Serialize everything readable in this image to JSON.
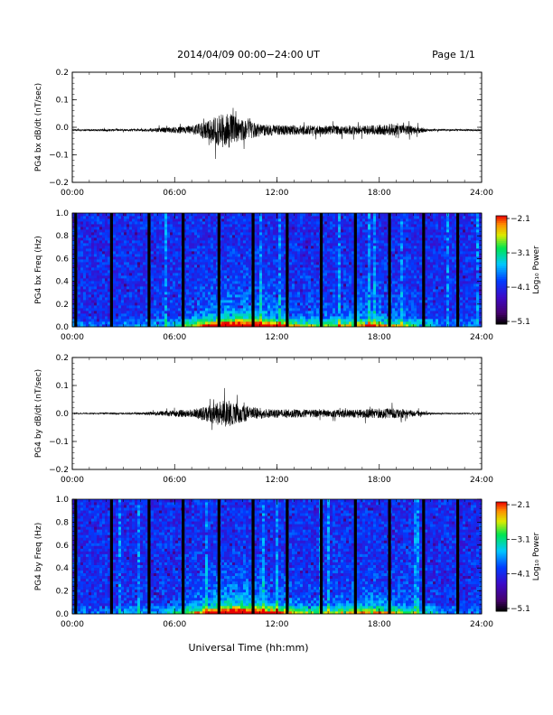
{
  "header": {
    "title": "2014/04/09  00:00−24:00 UT",
    "page": "Page 1/1"
  },
  "xlabel": "Universal Time (hh:mm)",
  "chart_data": [
    {
      "type": "line",
      "ylabel": "PG4 bx dB/dt (nT/sec)",
      "x_ticks": [
        "00:00",
        "06:00",
        "12:00",
        "18:00",
        "24:00"
      ],
      "xlim": [
        0,
        24
      ],
      "ylim": [
        -0.2,
        0.2
      ],
      "y_ticks": [
        "0.2",
        "0.1",
        "0.0",
        "−0.1",
        "−0.2"
      ],
      "baseline": -0.01,
      "envelope_hours": [
        0,
        1,
        2,
        3,
        4,
        5,
        6,
        7,
        8,
        9,
        10,
        11,
        12,
        13,
        14,
        15,
        16,
        17,
        18,
        19,
        20,
        21,
        22,
        23,
        24
      ],
      "envelope_amplitude": [
        0.003,
        0.003,
        0.004,
        0.004,
        0.004,
        0.008,
        0.012,
        0.015,
        0.035,
        0.07,
        0.04,
        0.022,
        0.018,
        0.018,
        0.017,
        0.016,
        0.016,
        0.016,
        0.02,
        0.02,
        0.015,
        0.004,
        0.003,
        0.003,
        0.003
      ],
      "color": "#000000"
    },
    {
      "type": "heatmap",
      "ylabel": "PG4 bx Freq (Hz)",
      "x_ticks": [
        "00:00",
        "06:00",
        "12:00",
        "18:00",
        "24:00"
      ],
      "xlim": [
        0,
        24
      ],
      "ylim": [
        0.0,
        1.0
      ],
      "y_ticks": [
        "1.0",
        "0.8",
        "0.6",
        "0.4",
        "0.2",
        "0.0"
      ],
      "colorbar_label": "Log₁₀ Power",
      "colorbar_ticks": [
        "−2.1",
        "−3.1",
        "−4.1",
        "−5.1"
      ],
      "colorbar_range": [
        -5.1,
        -2.1
      ],
      "gap_hours": [
        0.2,
        2.3,
        4.5,
        6.5,
        8.6,
        10.6,
        12.6,
        14.6,
        16.6,
        18.6,
        20.6,
        22.6
      ],
      "activity_center_hours": [
        9.0,
        11.5,
        17.5
      ]
    },
    {
      "type": "line",
      "ylabel": "PG4 by dB/dt (nT/sec)",
      "x_ticks": [
        "00:00",
        "06:00",
        "12:00",
        "18:00",
        "24:00"
      ],
      "xlim": [
        0,
        24
      ],
      "ylim": [
        -0.2,
        0.2
      ],
      "y_ticks": [
        "0.2",
        "0.1",
        "0.0",
        "−0.1",
        "−0.2"
      ],
      "baseline": 0.0,
      "envelope_hours": [
        0,
        1,
        2,
        3,
        4,
        5,
        6,
        7,
        8,
        9,
        10,
        11,
        12,
        13,
        14,
        15,
        16,
        17,
        18,
        19,
        20,
        21,
        22,
        23,
        24
      ],
      "envelope_amplitude": [
        0.002,
        0.002,
        0.003,
        0.003,
        0.004,
        0.008,
        0.012,
        0.014,
        0.03,
        0.05,
        0.03,
        0.018,
        0.015,
        0.015,
        0.014,
        0.012,
        0.014,
        0.016,
        0.018,
        0.018,
        0.012,
        0.003,
        0.002,
        0.002,
        0.002
      ],
      "color": "#000000"
    },
    {
      "type": "heatmap",
      "ylabel": "PG4 by Freq (Hz)",
      "x_ticks": [
        "00:00",
        "06:00",
        "12:00",
        "18:00",
        "24:00"
      ],
      "xlim": [
        0,
        24
      ],
      "ylim": [
        0.0,
        1.0
      ],
      "y_ticks": [
        "1.0",
        "0.8",
        "0.6",
        "0.4",
        "0.2",
        "0.0"
      ],
      "colorbar_label": "Log₁₀ Power",
      "colorbar_ticks": [
        "−2.1",
        "−3.1",
        "−4.1",
        "−5.1"
      ],
      "colorbar_range": [
        -5.1,
        -2.1
      ],
      "gap_hours": [
        0.2,
        2.3,
        4.5,
        6.5,
        8.6,
        10.6,
        12.6,
        14.6,
        16.6,
        18.6,
        20.6,
        22.6
      ],
      "activity_center_hours": [
        9.0,
        11.5,
        17.5
      ]
    }
  ]
}
